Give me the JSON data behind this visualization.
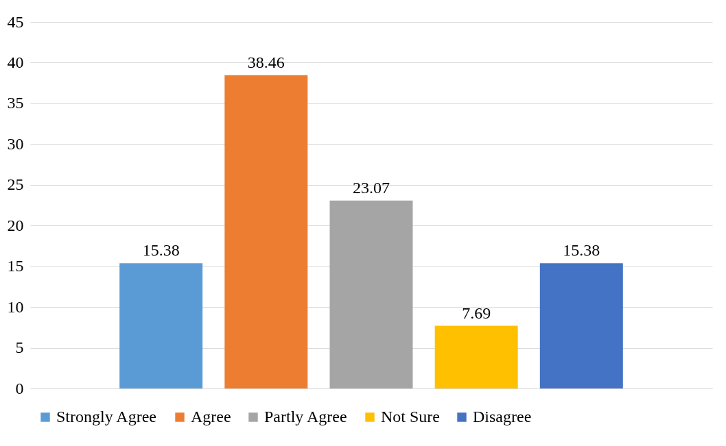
{
  "chart_data": {
    "type": "bar",
    "categories": [
      null
    ],
    "series": [
      {
        "name": "Strongly Agree",
        "color": "#5b9bd5",
        "values": [
          15.38
        ]
      },
      {
        "name": "Agree",
        "color": "#ed7d31",
        "values": [
          38.46
        ]
      },
      {
        "name": "Partly Agree",
        "color": "#a5a5a5",
        "values": [
          23.07
        ]
      },
      {
        "name": "Not Sure",
        "color": "#ffc000",
        "values": [
          7.69
        ]
      },
      {
        "name": "Disagree",
        "color": "#4472c4",
        "values": [
          15.38
        ]
      }
    ],
    "ylim": [
      0,
      45
    ],
    "yticks": [
      0,
      5,
      10,
      15,
      20,
      25,
      30,
      35,
      40,
      45
    ],
    "grid": "y",
    "legend": "bottom",
    "data_labels": true
  }
}
